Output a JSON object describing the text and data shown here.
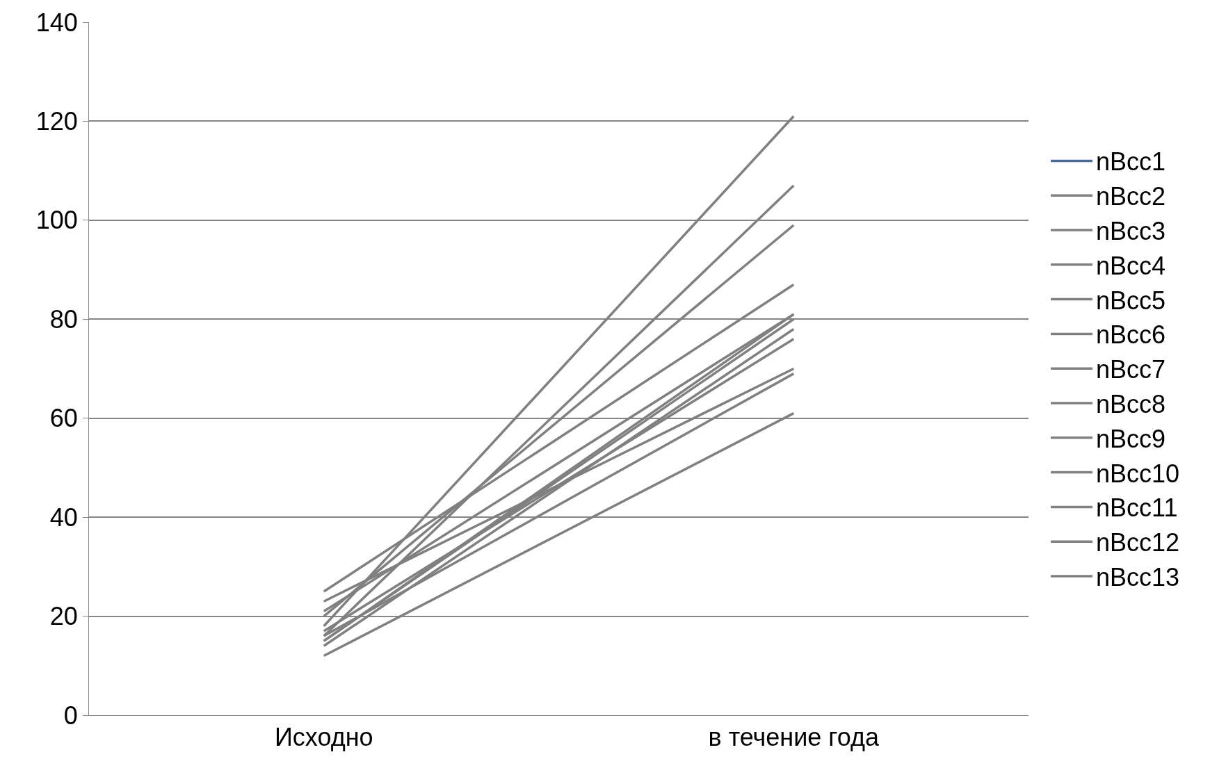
{
  "chart_data": {
    "type": "line",
    "categories": [
      "Исходно",
      "в течение года"
    ],
    "ylim": [
      0,
      140
    ],
    "yticks": [
      0,
      20,
      40,
      60,
      80,
      100,
      120,
      140
    ],
    "grid": "y",
    "legend": "right",
    "marker": "none",
    "line_style": "solid",
    "series": [
      {
        "name": "nBcc1",
        "color": "#4a6a94",
        "values": [
          null,
          null
        ]
      },
      {
        "name": "nBcc2",
        "color": "#808080",
        "values": [
          18,
          121
        ]
      },
      {
        "name": "nBcc3",
        "color": "#808080",
        "values": [
          16,
          107
        ]
      },
      {
        "name": "nBcc4",
        "color": "#808080",
        "values": [
          20,
          99
        ]
      },
      {
        "name": "nBcc5",
        "color": "#808080",
        "values": [
          25,
          87
        ]
      },
      {
        "name": "nBcc6",
        "color": "#808080",
        "values": [
          21,
          81
        ]
      },
      {
        "name": "nBcc7",
        "color": "#808080",
        "values": [
          15,
          80
        ]
      },
      {
        "name": "nBcc8",
        "color": "#808080",
        "values": [
          14,
          78
        ]
      },
      {
        "name": "nBcc9",
        "color": "#808080",
        "values": [
          17,
          76
        ]
      },
      {
        "name": "nBcc10",
        "color": "#808080",
        "values": [
          23,
          70
        ]
      },
      {
        "name": "nBcc11",
        "color": "#808080",
        "values": [
          16,
          69
        ]
      },
      {
        "name": "nBcc12",
        "color": "#808080",
        "values": [
          12,
          61
        ]
      },
      {
        "name": "nBcc13",
        "color": "#808080",
        "values": [
          15,
          81
        ]
      }
    ]
  }
}
